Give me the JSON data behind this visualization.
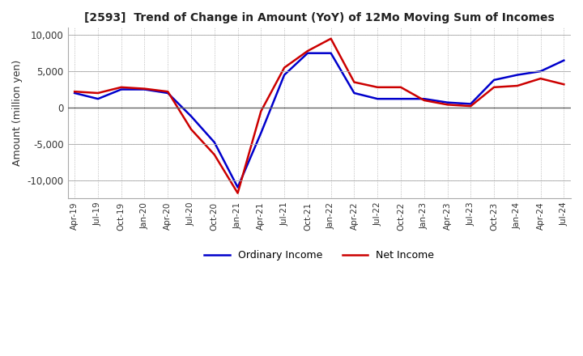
{
  "title": "[2593]  Trend of Change in Amount (YoY) of 12Mo Moving Sum of Incomes",
  "ylabel": "Amount (million yen)",
  "ylim": [
    -12500,
    11000
  ],
  "yticks": [
    -10000,
    -5000,
    0,
    5000,
    10000
  ],
  "background_color": "#ffffff",
  "grid_color": "#aaaaaa",
  "ordinary_income_color": "#0000cc",
  "net_income_color": "#cc0000",
  "x_labels": [
    "Apr-19",
    "Jul-19",
    "Oct-19",
    "Jan-20",
    "Apr-20",
    "Jul-20",
    "Oct-20",
    "Jan-21",
    "Apr-21",
    "Jul-21",
    "Oct-21",
    "Jan-22",
    "Apr-22",
    "Jul-22",
    "Oct-22",
    "Jan-23",
    "Apr-23",
    "Jul-23",
    "Oct-23",
    "Jan-24",
    "Apr-24",
    "Jul-24"
  ],
  "ordinary_income": [
    2000,
    1200,
    2500,
    2500,
    2000,
    -1200,
    -4800,
    -11000,
    -3500,
    4500,
    7500,
    7500,
    2000,
    1200,
    1200,
    1200,
    700,
    500,
    3800,
    4500,
    5000,
    6500
  ],
  "net_income": [
    2200,
    2000,
    2800,
    2600,
    2200,
    -3000,
    -6500,
    -11800,
    -500,
    5500,
    7800,
    9500,
    3500,
    2800,
    2800,
    1000,
    400,
    200,
    2800,
    3000,
    4000,
    3200
  ]
}
